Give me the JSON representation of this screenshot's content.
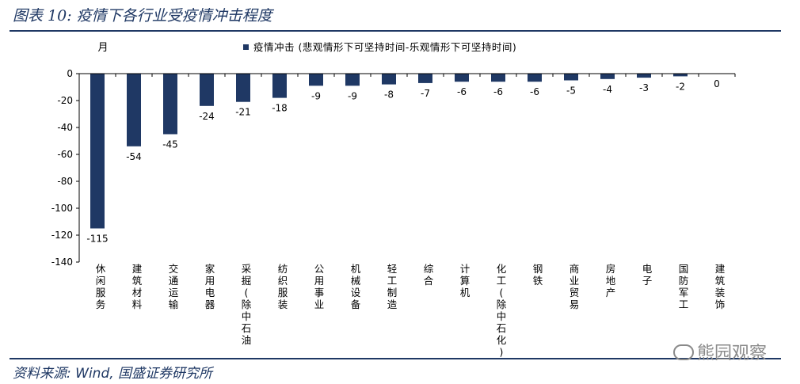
{
  "figure": {
    "title": "图表 10:  疫情下各行业受疫情冲击程度",
    "source": "资料来源:  Wind,  国盛证券研究所",
    "watermark": "熊园观察",
    "watermark_icon": "wechat-icon"
  },
  "chart_data": {
    "type": "bar",
    "unit_label": "月",
    "series": [
      {
        "name": "疫情冲击 (悲观情形下可坚持时间-乐观情形下可坚持时间)",
        "color": "#1f3864",
        "values": [
          -115,
          -54,
          -45,
          -24,
          -21,
          -18,
          -9,
          -9,
          -8,
          -7,
          -6,
          -6,
          -6,
          -5,
          -4,
          -3,
          -2,
          0
        ]
      }
    ],
    "categories": [
      "休闲服务",
      "建筑材料",
      "交通运输",
      "家用电器",
      "采掘(除中石油",
      "纺织服装",
      "公用事业",
      "机械设备",
      "轻工制造",
      "综合",
      "计算机",
      "化工(除中石化)",
      "钢铁",
      "商业贸易",
      "房地产",
      "电子",
      "国防军工",
      "建筑装饰"
    ],
    "data_labels": [
      "-115",
      "-54",
      "-45",
      "-24",
      "-21",
      "-18",
      "-9",
      "-9",
      "-8",
      "-7",
      "-6",
      "-6",
      "-6",
      "-5",
      "-4",
      "-3",
      "-2",
      "0"
    ],
    "y_ticks": [
      "0",
      "-20",
      "-40",
      "-60",
      "-80",
      "-100",
      "-120",
      "-140"
    ],
    "ylim": [
      -140,
      0
    ],
    "legend_position": "top",
    "grid": false
  }
}
